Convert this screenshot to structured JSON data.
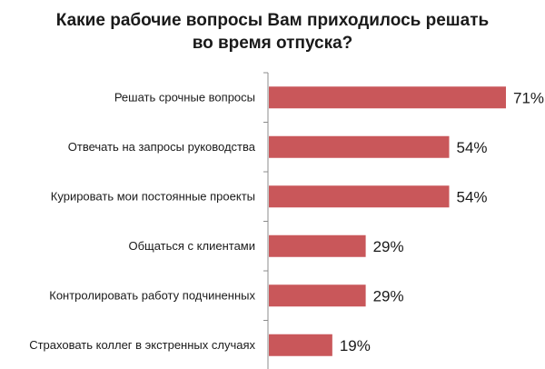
{
  "chart_data": {
    "type": "bar",
    "orientation": "horizontal",
    "title_lines": [
      "Какие рабочие вопросы Вам приходилось решать",
      "во время отпуска?"
    ],
    "categories": [
      "Решать срочные вопросы",
      "Отвечать на запросы руководства",
      "Курировать мои постоянные проекты",
      "Общаться с клиентами",
      "Контролировать работу подчиненных",
      "Страховать коллег в экстренных случаях"
    ],
    "values": [
      71,
      54,
      54,
      29,
      29,
      19
    ],
    "value_labels": [
      "71%",
      "54%",
      "54%",
      "29%",
      "29%",
      "19%"
    ],
    "unit": "%",
    "bar_color": "#c9575a",
    "axis_color": "#8c8c8c",
    "grid": false,
    "legend": "none"
  }
}
